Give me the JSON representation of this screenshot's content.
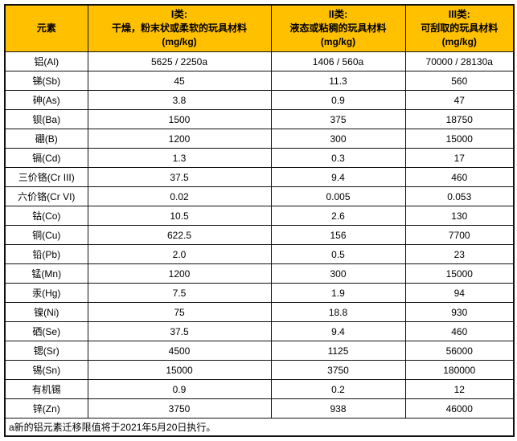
{
  "colors": {
    "header_background": "#FFC000",
    "header_text": "#000000",
    "body_text": "#000000",
    "border": "#111111",
    "page_background": "#ffffff"
  },
  "table": {
    "header": {
      "element_label": "元素",
      "categories": [
        {
          "title": "I类:",
          "desc": "干燥，粉末状或柔软的玩具材料",
          "unit": "(mg/kg)"
        },
        {
          "title": "II类:",
          "desc": "液态或粘稠的玩具材料",
          "unit": "(mg/kg)"
        },
        {
          "title": "III类:",
          "desc": "可刮取的玩具材料",
          "unit": "(mg/kg)"
        }
      ]
    },
    "rows": [
      {
        "element": "铝(Al)",
        "values": [
          "5625 / 2250a",
          "1406 / 560a",
          "70000 / 28130a"
        ]
      },
      {
        "element": "锑(Sb)",
        "values": [
          "45",
          "11.3",
          "560"
        ]
      },
      {
        "element": "砷(As)",
        "values": [
          "3.8",
          "0.9",
          "47"
        ]
      },
      {
        "element": "钡(Ba)",
        "values": [
          "1500",
          "375",
          "18750"
        ]
      },
      {
        "element": "硼(B)",
        "values": [
          "1200",
          "300",
          "15000"
        ]
      },
      {
        "element": "镉(Cd)",
        "values": [
          "1.3",
          "0.3",
          "17"
        ]
      },
      {
        "element": "三价铬(Cr III)",
        "values": [
          "37.5",
          "9.4",
          "460"
        ]
      },
      {
        "element": "六价铬(Cr VI)",
        "values": [
          "0.02",
          "0.005",
          "0.053"
        ]
      },
      {
        "element": "钴(Co)",
        "values": [
          "10.5",
          "2.6",
          "130"
        ]
      },
      {
        "element": "铜(Cu)",
        "values": [
          "622.5",
          "156",
          "7700"
        ]
      },
      {
        "element": "铅(Pb)",
        "values": [
          "2.0",
          "0.5",
          "23"
        ]
      },
      {
        "element": "锰(Mn)",
        "values": [
          "1200",
          "300",
          "15000"
        ]
      },
      {
        "element": "汞(Hg)",
        "values": [
          "7.5",
          "1.9",
          "94"
        ]
      },
      {
        "element": "镍(Ni)",
        "values": [
          "75",
          "18.8",
          "930"
        ]
      },
      {
        "element": "硒(Se)",
        "values": [
          "37.5",
          "9.4",
          "460"
        ]
      },
      {
        "element": "锶(Sr)",
        "values": [
          "4500",
          "1125",
          "56000"
        ]
      },
      {
        "element": "锡(Sn)",
        "values": [
          "15000",
          "3750",
          "180000"
        ]
      },
      {
        "element": "有机锡",
        "values": [
          "0.9",
          "0.2",
          "12"
        ]
      },
      {
        "element": "锌(Zn)",
        "values": [
          "3750",
          "938",
          "46000"
        ]
      }
    ],
    "footnote": "a新的铝元素迁移限值将于2021年5月20日执行。"
  }
}
